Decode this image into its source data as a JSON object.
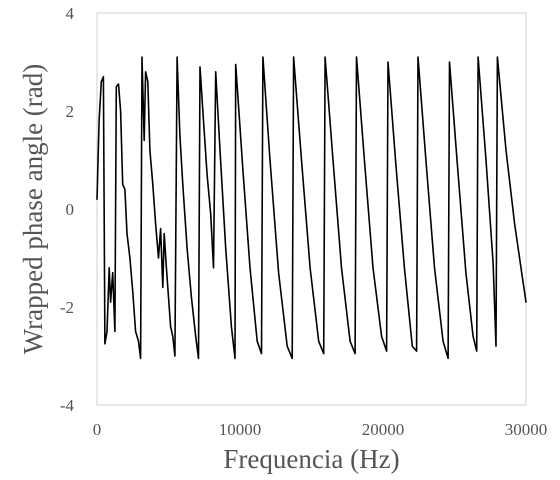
{
  "chart_data": {
    "type": "line",
    "title": "",
    "xlabel": "Frequencia (Hz)",
    "ylabel": "Wrapped phase angle (rad)",
    "xlim": [
      0,
      30000
    ],
    "ylim": [
      -4,
      4
    ],
    "xticks": [
      0,
      10000,
      20000,
      30000
    ],
    "xtick_labels": [
      "0",
      "10000",
      "20000",
      "30000"
    ],
    "yticks": [
      -4,
      -2,
      0,
      2,
      4
    ],
    "ytick_labels": [
      "-4",
      "-2",
      "0",
      "2",
      "4"
    ],
    "grid": false,
    "legend": "none",
    "series": [
      {
        "color": "#000000",
        "points": [
          [
            0,
            0.2
          ],
          [
            150,
            1.8
          ],
          [
            300,
            2.6
          ],
          [
            450,
            2.7
          ],
          [
            550,
            -2.75
          ],
          [
            700,
            -2.5
          ],
          [
            850,
            -1.2
          ],
          [
            950,
            -1.9
          ],
          [
            1100,
            -1.3
          ],
          [
            1250,
            -2.5
          ],
          [
            1350,
            2.5
          ],
          [
            1500,
            2.55
          ],
          [
            1650,
            2.0
          ],
          [
            1800,
            0.5
          ],
          [
            1950,
            0.4
          ],
          [
            2100,
            -0.5
          ],
          [
            2300,
            -1.0
          ],
          [
            2500,
            -1.7
          ],
          [
            2700,
            -2.5
          ],
          [
            2900,
            -2.7
          ],
          [
            3050,
            -3.05
          ],
          [
            3150,
            3.1
          ],
          [
            3300,
            1.4
          ],
          [
            3400,
            2.8
          ],
          [
            3550,
            2.6
          ],
          [
            3700,
            1.2
          ],
          [
            3900,
            0.5
          ],
          [
            4100,
            -0.3
          ],
          [
            4300,
            -1.0
          ],
          [
            4450,
            -0.4
          ],
          [
            4600,
            -1.6
          ],
          [
            4700,
            -0.5
          ],
          [
            4850,
            -1.2
          ],
          [
            5000,
            -1.8
          ],
          [
            5150,
            -2.4
          ],
          [
            5300,
            -2.6
          ],
          [
            5450,
            -3.0
          ],
          [
            5600,
            3.1
          ],
          [
            5800,
            1.5
          ],
          [
            6000,
            0.5
          ],
          [
            6300,
            -0.8
          ],
          [
            6600,
            -1.8
          ],
          [
            6900,
            -2.6
          ],
          [
            7100,
            -3.05
          ],
          [
            7200,
            2.9
          ],
          [
            7450,
            1.8
          ],
          [
            7700,
            0.7
          ],
          [
            7950,
            -0.1
          ],
          [
            8150,
            -1.2
          ],
          [
            8300,
            2.8
          ],
          [
            8600,
            1.2
          ],
          [
            9000,
            -0.8
          ],
          [
            9400,
            -2.4
          ],
          [
            9650,
            -3.05
          ],
          [
            9700,
            2.95
          ],
          [
            10200,
            0.8
          ],
          [
            10700,
            -1.2
          ],
          [
            11200,
            -2.7
          ],
          [
            11500,
            -2.95
          ],
          [
            11600,
            3.1
          ],
          [
            12100,
            1.0
          ],
          [
            12700,
            -1.3
          ],
          [
            13300,
            -2.8
          ],
          [
            13650,
            -3.05
          ],
          [
            13750,
            3.1
          ],
          [
            14300,
            1.0
          ],
          [
            14900,
            -1.2
          ],
          [
            15500,
            -2.7
          ],
          [
            15850,
            -2.95
          ],
          [
            15950,
            3.1
          ],
          [
            16500,
            1.0
          ],
          [
            17100,
            -1.2
          ],
          [
            17700,
            -2.7
          ],
          [
            18050,
            -2.95
          ],
          [
            18150,
            3.1
          ],
          [
            18700,
            1.0
          ],
          [
            19300,
            -1.2
          ],
          [
            19900,
            -2.6
          ],
          [
            20250,
            -2.9
          ],
          [
            20350,
            3.0
          ],
          [
            20900,
            0.9
          ],
          [
            21500,
            -1.2
          ],
          [
            22050,
            -2.8
          ],
          [
            22350,
            -2.9
          ],
          [
            22450,
            3.1
          ],
          [
            23000,
            1.0
          ],
          [
            23600,
            -1.2
          ],
          [
            24200,
            -2.7
          ],
          [
            24550,
            -3.05
          ],
          [
            24650,
            3.0
          ],
          [
            25200,
            0.9
          ],
          [
            25800,
            -1.3
          ],
          [
            26300,
            -2.6
          ],
          [
            26550,
            -2.9
          ],
          [
            26650,
            3.1
          ],
          [
            27200,
            1.0
          ],
          [
            27700,
            -1.1
          ],
          [
            27900,
            -2.8
          ],
          [
            28000,
            3.1
          ],
          [
            28600,
            1.2
          ],
          [
            29200,
            -0.3
          ],
          [
            29700,
            -1.3
          ],
          [
            30000,
            -1.9
          ]
        ]
      }
    ]
  }
}
